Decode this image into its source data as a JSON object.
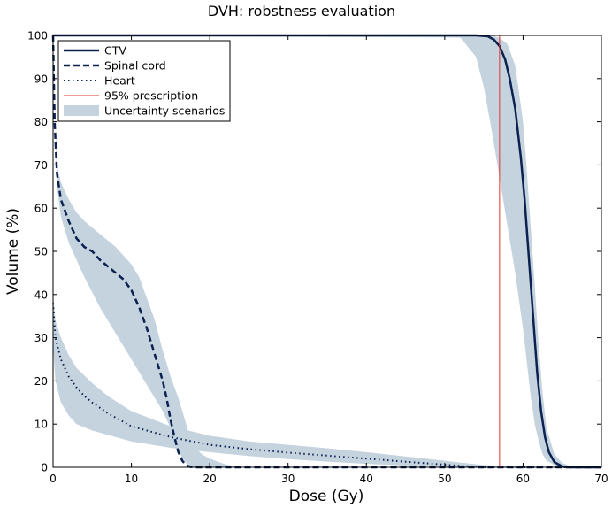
{
  "chart_data": {
    "type": "line",
    "title": "DVH: robstness evaluation",
    "xlabel": "Dose (Gy)",
    "ylabel": "Volume (%)",
    "xlim": [
      0,
      70
    ],
    "ylim": [
      0,
      100
    ],
    "xticks": [
      "0",
      "10",
      "20",
      "30",
      "40",
      "50",
      "60",
      "70"
    ],
    "yticks": [
      "0",
      "10",
      "20",
      "30",
      "40",
      "50",
      "60",
      "70",
      "80",
      "90",
      "100"
    ],
    "grid": false,
    "legend_position": "top-left",
    "legend": [
      {
        "label": "CTV",
        "style": "solid"
      },
      {
        "label": "Spinal cord",
        "style": "dashed"
      },
      {
        "label": "Heart",
        "style": "dotted"
      },
      {
        "label": "95% prescription",
        "style": "thin-red"
      },
      {
        "label": "Uncertainty scenarios",
        "style": "band"
      }
    ],
    "colors": {
      "line": "#0b2150",
      "band": "#c5d3df",
      "prescription": "#e0342c"
    },
    "prescription_dose": 57,
    "series": [
      {
        "name": "CTV",
        "x": [
          0,
          54,
          55.5,
          56.3,
          57,
          57.7,
          58.3,
          59,
          59.7,
          60.2,
          60.6,
          61,
          61.4,
          61.8,
          62.3,
          62.8,
          63.3,
          64,
          65,
          66,
          70
        ],
        "y": [
          100,
          100,
          99.8,
          99,
          97.5,
          94.5,
          90,
          83,
          72,
          62,
          52,
          42,
          32,
          22,
          13,
          7,
          3.5,
          1.2,
          0.2,
          0,
          0
        ]
      },
      {
        "name": "Spinal cord",
        "x": [
          0,
          0.2,
          0.5,
          1,
          2,
          3,
          4,
          5,
          6,
          7,
          8,
          9,
          10,
          11,
          12,
          13,
          14,
          14.5,
          15,
          15.5,
          16,
          16.5,
          17,
          17.5,
          18,
          70
        ],
        "y": [
          100,
          80,
          68,
          62,
          57,
          53,
          51,
          50,
          48,
          46.5,
          45,
          43.5,
          41,
          37,
          32,
          26,
          20,
          16,
          11,
          7,
          3.5,
          1.5,
          0.5,
          0.1,
          0,
          0
        ]
      },
      {
        "name": "Heart",
        "x": [
          0,
          0.3,
          1,
          2,
          3,
          4,
          5,
          7,
          10,
          15,
          20,
          25,
          30,
          35,
          40,
          45,
          50,
          53,
          55,
          56,
          70
        ],
        "y": [
          38,
          30,
          25,
          21,
          18.5,
          16.5,
          15,
          12.5,
          9.5,
          7,
          5.2,
          4.2,
          3.4,
          2.7,
          2,
          1.3,
          0.6,
          0.2,
          0.05,
          0,
          0
        ]
      }
    ],
    "bands": [
      {
        "name": "CTV",
        "x": [
          0,
          52,
          54,
          55,
          56,
          57,
          58,
          59,
          60,
          60.5,
          61,
          61.5,
          62,
          62.5,
          63,
          64,
          65,
          66,
          70
        ],
        "lower": [
          100,
          99.5,
          95,
          88,
          78,
          67,
          56,
          45,
          32,
          24,
          16,
          10,
          6,
          3,
          1.5,
          0.5,
          0,
          0,
          0
        ],
        "upper": [
          100,
          100,
          100,
          100,
          100,
          99.5,
          98,
          93,
          80,
          68,
          55,
          42,
          28,
          17,
          9,
          3,
          1,
          0.3,
          0
        ]
      },
      {
        "name": "Spinal cord",
        "x": [
          0,
          0.5,
          1,
          2,
          3,
          4,
          6,
          8,
          10,
          11,
          12,
          13,
          14,
          15,
          16,
          16.5,
          17,
          17.5,
          18,
          19,
          20,
          21,
          22,
          23,
          24,
          70
        ],
        "lower": [
          98,
          65,
          58,
          52,
          48,
          44,
          37,
          31,
          25,
          22,
          19,
          16,
          13,
          9,
          4,
          2,
          1,
          0.3,
          0,
          0,
          0,
          0,
          0,
          0,
          0,
          0
        ],
        "upper": [
          100,
          70,
          66,
          62,
          59,
          57,
          54,
          51,
          47,
          44,
          39,
          34,
          27,
          21,
          16,
          13,
          10,
          7,
          5,
          3,
          2,
          1.3,
          0.7,
          0.3,
          0,
          0
        ]
      },
      {
        "name": "Heart",
        "x": [
          0,
          0.3,
          1,
          2,
          3,
          5,
          7,
          10,
          15,
          20,
          25,
          30,
          35,
          40,
          45,
          50,
          55,
          60,
          70
        ],
        "lower": [
          28,
          20,
          15,
          12,
          10,
          8.5,
          7.5,
          6,
          4.5,
          3.5,
          2.6,
          1.9,
          1.3,
          0.8,
          0.4,
          0.1,
          0,
          0,
          0
        ],
        "upper": [
          40,
          34,
          30,
          26,
          23,
          19.5,
          16.5,
          13,
          9.5,
          7.3,
          6,
          5.2,
          4.4,
          3.5,
          2.5,
          1.5,
          0.5,
          0,
          0
        ]
      }
    ]
  }
}
